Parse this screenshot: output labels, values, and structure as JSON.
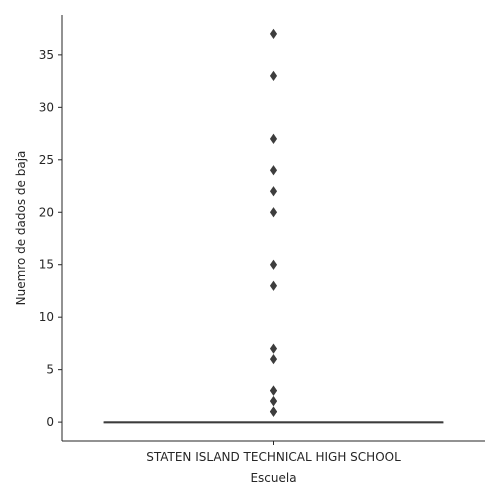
{
  "chart_data": {
    "type": "boxplot",
    "xlabel": "Escuela",
    "ylabel": "Nuemro de dados de baja",
    "categories": [
      "STATEN ISLAND TECHNICAL HIGH SCHOOL"
    ],
    "ylim": [
      -1.8,
      38.8
    ],
    "yticks": [
      0,
      5,
      10,
      15,
      20,
      25,
      30,
      35
    ],
    "box": {
      "q1": 0,
      "median": 0,
      "q3": 0,
      "whisker_low": 0,
      "whisker_high": 0
    },
    "outliers": [
      37,
      33,
      27,
      24,
      22,
      20,
      15,
      13,
      7,
      6,
      3,
      3,
      2,
      2,
      1,
      1,
      1
    ],
    "grid": false,
    "colors": {
      "box": "#3d3d3d",
      "outlier": "#3d3d3d",
      "axis": "#262626"
    }
  }
}
